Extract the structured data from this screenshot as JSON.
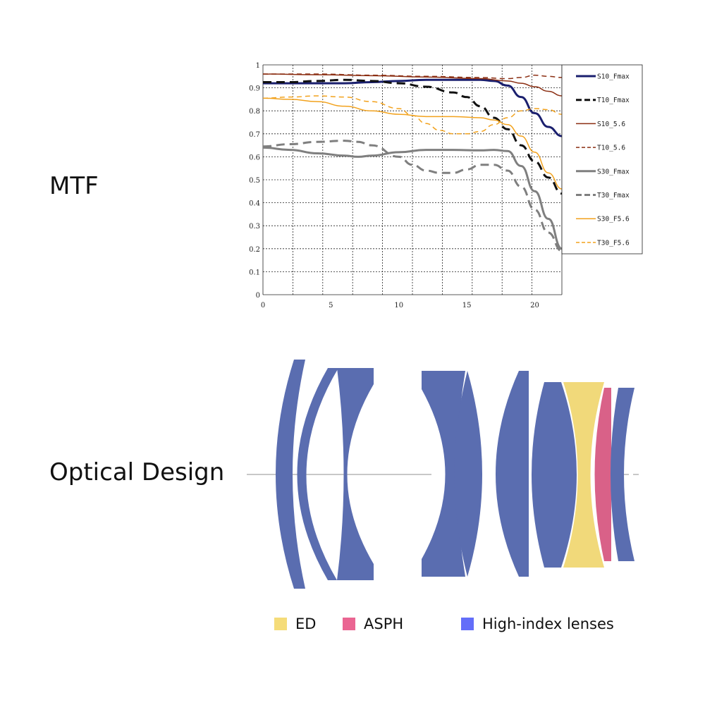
{
  "sections": {
    "mtf_title": "MTF",
    "optical_title": "Optical Design"
  },
  "chart_data": {
    "type": "line",
    "title": "",
    "xlabel": "",
    "ylabel": "",
    "xlim": [
      0,
      22
    ],
    "ylim": [
      0,
      1
    ],
    "grid": true,
    "legend_position": "right",
    "x_ticks": [
      0,
      5,
      10,
      15,
      20
    ],
    "y_ticks": [
      0,
      0.1,
      0.2,
      0.3,
      0.4,
      0.5,
      0.6,
      0.7,
      0.8,
      0.9,
      1
    ],
    "series": [
      {
        "name": "S10_Fmax",
        "color": "#1a1f6e",
        "dash": false,
        "x": [
          0,
          2,
          4,
          6,
          8,
          10,
          12,
          14,
          16,
          17,
          18,
          19,
          20,
          21,
          22
        ],
        "y": [
          0.92,
          0.92,
          0.92,
          0.92,
          0.925,
          0.93,
          0.935,
          0.935,
          0.935,
          0.93,
          0.91,
          0.86,
          0.79,
          0.73,
          0.69
        ]
      },
      {
        "name": "T10_Fmax",
        "color": "#111111",
        "dash": true,
        "x": [
          0,
          2,
          4,
          6,
          8,
          10,
          12,
          14,
          15,
          16,
          17,
          18,
          19,
          20,
          21,
          22
        ],
        "y": [
          0.925,
          0.925,
          0.93,
          0.935,
          0.93,
          0.92,
          0.905,
          0.88,
          0.86,
          0.82,
          0.77,
          0.72,
          0.65,
          0.58,
          0.51,
          0.44
        ]
      },
      {
        "name": "T10_5.6",
        "color": "#8b2e12",
        "dash": true,
        "x": [
          0,
          4,
          8,
          12,
          16,
          18,
          19,
          20,
          21,
          22
        ],
        "y": [
          0.96,
          0.96,
          0.955,
          0.95,
          0.945,
          0.94,
          0.945,
          0.955,
          0.95,
          0.945
        ]
      },
      {
        "name": "S10_5.6",
        "color": "#8b2e12",
        "dash": false,
        "x": [
          0,
          4,
          8,
          12,
          16,
          18,
          19,
          20,
          21,
          22
        ],
        "y": [
          0.96,
          0.957,
          0.953,
          0.947,
          0.94,
          0.93,
          0.92,
          0.905,
          0.885,
          0.865
        ]
      },
      {
        "name": "S30_F5.6",
        "color": "#f2a21d",
        "dash": false,
        "x": [
          0,
          2,
          4,
          6,
          8,
          10,
          12,
          14,
          16,
          17,
          18,
          19,
          20,
          21,
          22
        ],
        "y": [
          0.855,
          0.85,
          0.84,
          0.82,
          0.8,
          0.785,
          0.775,
          0.775,
          0.77,
          0.76,
          0.74,
          0.69,
          0.62,
          0.53,
          0.46
        ]
      },
      {
        "name": "T30_F5.6",
        "color": "#f2a21d",
        "dash": true,
        "x": [
          0,
          2,
          4,
          6,
          8,
          10,
          11,
          12,
          13,
          14,
          15,
          16,
          17,
          18,
          19,
          20,
          21,
          22
        ],
        "y": [
          0.855,
          0.86,
          0.865,
          0.86,
          0.84,
          0.81,
          0.78,
          0.745,
          0.715,
          0.7,
          0.7,
          0.71,
          0.74,
          0.77,
          0.8,
          0.81,
          0.805,
          0.785
        ]
      },
      {
        "name": "S30_Fmax",
        "color": "#7f7f7f",
        "dash": false,
        "x": [
          0,
          2,
          4,
          6,
          7,
          8,
          10,
          12,
          14,
          16,
          17,
          18,
          19,
          20,
          21,
          22
        ],
        "y": [
          0.64,
          0.63,
          0.615,
          0.605,
          0.6,
          0.605,
          0.62,
          0.63,
          0.63,
          0.628,
          0.63,
          0.625,
          0.56,
          0.45,
          0.33,
          0.2
        ]
      },
      {
        "name": "T30_Fmax",
        "color": "#7f7f7f",
        "dash": true,
        "x": [
          0,
          2,
          4,
          6,
          7,
          8,
          10,
          11,
          12,
          13,
          14,
          15,
          16,
          17,
          18,
          19,
          20,
          21,
          22
        ],
        "y": [
          0.645,
          0.655,
          0.665,
          0.67,
          0.665,
          0.65,
          0.6,
          0.565,
          0.54,
          0.53,
          0.53,
          0.545,
          0.565,
          0.565,
          0.54,
          0.47,
          0.37,
          0.27,
          0.19
        ]
      }
    ],
    "legend_order": [
      "S10_Fmax",
      "T10_Fmax",
      "S10_5.6",
      "T10_5.6",
      "S30_Fmax",
      "T30_Fmax",
      "S30_F5.6",
      "T30_F5.6"
    ]
  },
  "optical_design": {
    "colors": {
      "high_index": "#5a6db0",
      "ed": "#f1d97a",
      "asph": "#d96188",
      "axis": "#c8c8c8"
    },
    "legend": [
      {
        "label": "ED",
        "color": "#f5dc79"
      },
      {
        "label": "ASPH",
        "color": "#ea6592"
      },
      {
        "label": "High-index lenses",
        "color": "#636ef9"
      }
    ]
  }
}
